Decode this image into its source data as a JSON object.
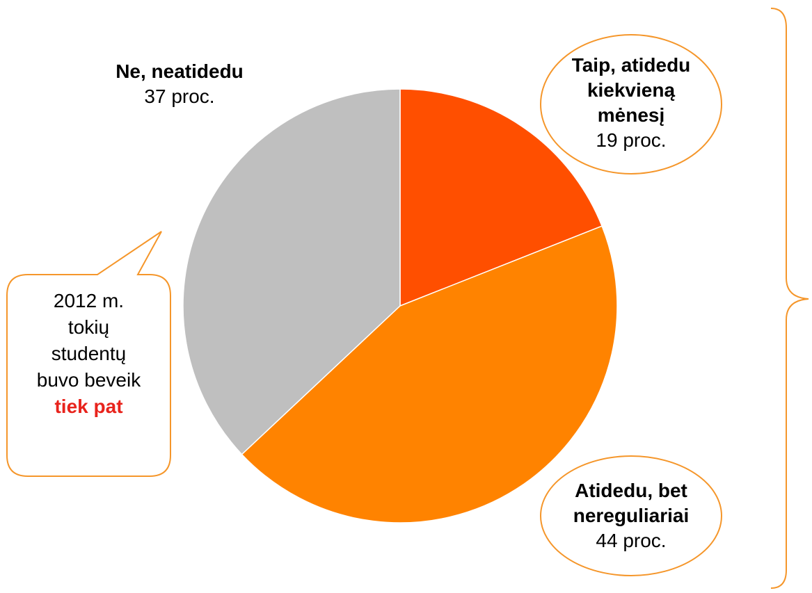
{
  "chart_data": {
    "type": "pie",
    "categories": [
      "Taip, atidedu kiekvieną mėnesį",
      "Atidedu, bet nereguliariai",
      "Ne, neatidedu"
    ],
    "values": [
      19,
      44,
      37
    ],
    "value_labels": [
      "19 proc.",
      "44 proc.",
      "37 proc."
    ],
    "colors": [
      "#ff4f00",
      "#ff8300",
      "#bfbfbf"
    ],
    "annotation": {
      "text": "2012 m. tokių studentų buvo beveik",
      "highlight": "tiek pat"
    }
  }
}
